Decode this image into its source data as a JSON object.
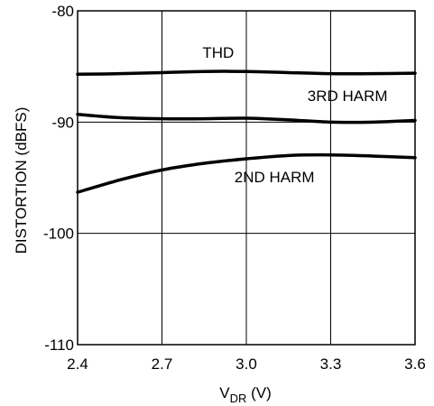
{
  "chart_data": {
    "type": "line",
    "title": "",
    "xlabel_main": "V",
    "xlabel_sub": "DR",
    "xlabel_unit": " (V)",
    "ylabel": "DISTORTION (dBFS)",
    "xlim": [
      2.4,
      3.6
    ],
    "ylim": [
      -110,
      -80
    ],
    "grid": true,
    "x_ticks": [
      2.4,
      2.7,
      3.0,
      3.3,
      3.6
    ],
    "x_tick_labels": [
      "2.4",
      "2.7",
      "3.0",
      "3.3",
      "3.6"
    ],
    "y_ticks": [
      -80,
      -90,
      -100,
      -110
    ],
    "y_tick_labels": [
      "-80",
      "-90",
      "-100",
      "-110"
    ],
    "series": [
      {
        "name": "THD",
        "x": [
          2.4,
          2.55,
          2.7,
          2.85,
          3.0,
          3.15,
          3.3,
          3.45,
          3.6
        ],
        "y": [
          -85.7,
          -85.65,
          -85.55,
          -85.45,
          -85.45,
          -85.55,
          -85.65,
          -85.65,
          -85.6
        ]
      },
      {
        "name": "3RD HARM",
        "x": [
          2.4,
          2.55,
          2.7,
          2.85,
          3.0,
          3.15,
          3.3,
          3.45,
          3.6
        ],
        "y": [
          -89.3,
          -89.6,
          -89.7,
          -89.7,
          -89.65,
          -89.8,
          -90.0,
          -90.0,
          -89.85
        ]
      },
      {
        "name": "2ND HARM",
        "x": [
          2.4,
          2.55,
          2.7,
          2.85,
          3.0,
          3.15,
          3.3,
          3.45,
          3.6
        ],
        "y": [
          -96.3,
          -95.2,
          -94.3,
          -93.7,
          -93.3,
          -93.0,
          -92.95,
          -93.05,
          -93.2
        ]
      }
    ],
    "annotations": [
      {
        "text": "THD",
        "x": 2.9,
        "y": -84.2
      },
      {
        "text": "3RD HARM",
        "x": 3.36,
        "y": -88.1
      },
      {
        "text": "2ND HARM",
        "x": 3.1,
        "y": -95.4
      }
    ]
  }
}
